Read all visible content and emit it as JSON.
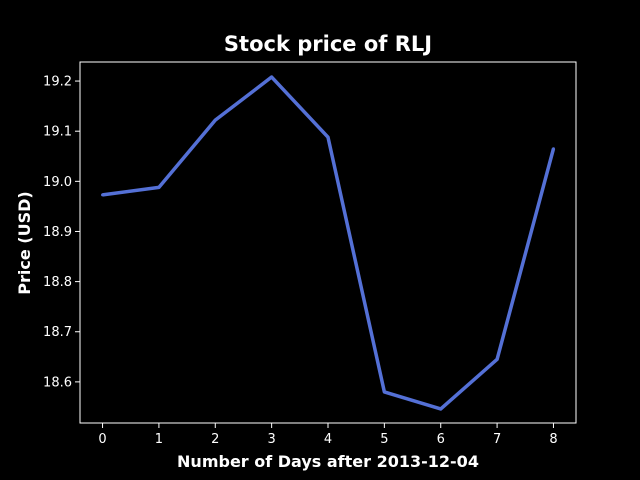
{
  "chart_data": {
    "type": "line",
    "title": "Stock price of RLJ",
    "xlabel": "Number of Days after 2013-12-04",
    "ylabel": "Price (USD)",
    "x": [
      0,
      1,
      2,
      3,
      4,
      5,
      6,
      7,
      8
    ],
    "series": [
      {
        "values": [
          18.973,
          18.988,
          19.122,
          19.208,
          19.088,
          18.58,
          18.546,
          18.645,
          19.065
        ],
        "color": "#5470d6"
      }
    ],
    "xlim": [
      -0.4,
      8.4
    ],
    "ylim": [
      18.518,
      19.238
    ],
    "xticks": [
      "0",
      "1",
      "2",
      "3",
      "4",
      "5",
      "6",
      "7",
      "8"
    ],
    "yticks": [
      "18.6",
      "18.7",
      "18.8",
      "18.9",
      "19.0",
      "19.1",
      "19.2"
    ],
    "grid": false,
    "legend": "none",
    "background": "#000000",
    "axis_color": "#ffffff"
  }
}
